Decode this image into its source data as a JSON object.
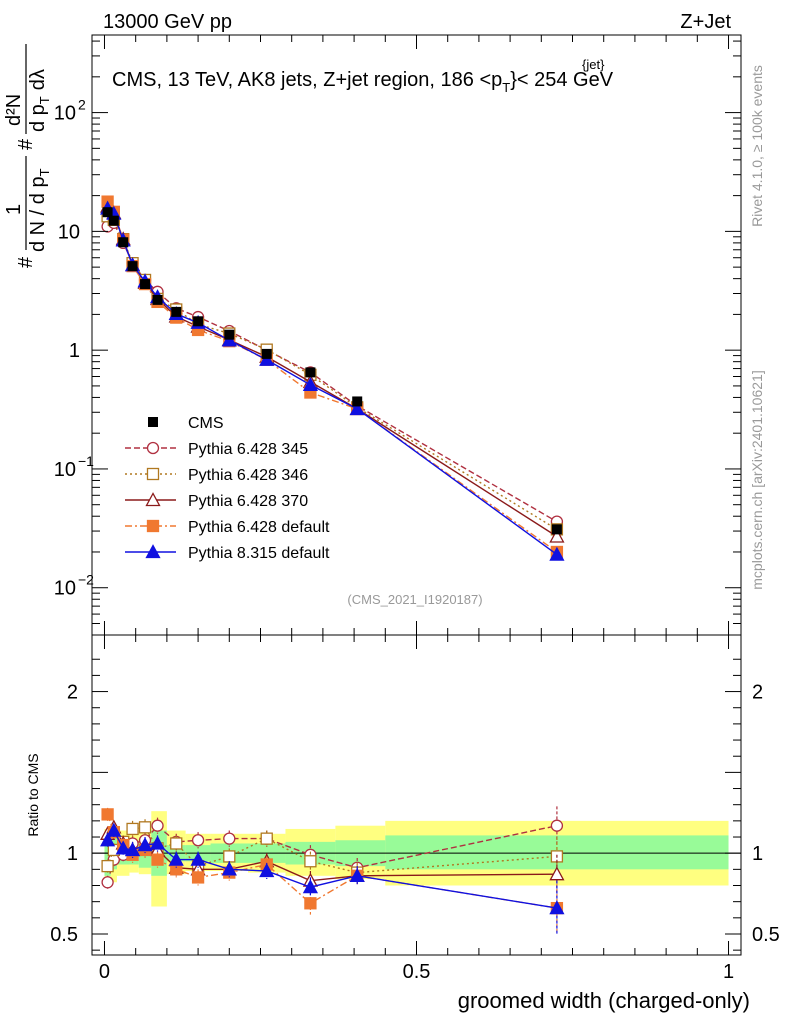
{
  "header": {
    "energy_label": "13000 GeV pp",
    "process_label": "Z+Jet",
    "analysis_title": "CMS, 13 TeV, AK8 jets, Z+jet region, 186 <p",
    "title_jet_sup": "{jet}",
    "title_t_sub": "T",
    "title_suffix": "}< 254 GeV",
    "analysis_id": "(CMS_2021_I1920187)"
  },
  "side_labels": {
    "rivet": "Rivet 4.1.0, ≥ 100k events",
    "mcplots": "mcplots.cern.ch [arXiv:2401.10621]"
  },
  "axes": {
    "xlabel": "groomed width (charged-only)",
    "ylabel_main": "# 1/(d N / d p_T) # d²N/(d p_T dλ)",
    "ylabel_ratio": "Ratio to CMS",
    "ylabel_parts": {
      "hash": "#",
      "one": "1",
      "dN": "d N / d p",
      "T": "T",
      "d2N": "d²N",
      "dp": "d p",
      "dl": "dλ"
    },
    "x_ticks": [
      {
        "value": 0,
        "label": "0"
      },
      {
        "value": 0.5,
        "label": "0.5"
      },
      {
        "value": 1,
        "label": "1"
      }
    ],
    "y_ticks_main": [
      {
        "value": 0.01,
        "base": "10",
        "exp": "−2"
      },
      {
        "value": 0.1,
        "base": "10",
        "exp": "−1"
      },
      {
        "value": 1,
        "base": "1",
        "exp": ""
      },
      {
        "value": 10,
        "base": "10",
        "exp": ""
      },
      {
        "value": 100,
        "base": "10",
        "exp": "2"
      }
    ],
    "y_ticks_ratio": [
      {
        "value": 0.5,
        "label": "0.5"
      },
      {
        "value": 1,
        "label": "1"
      },
      {
        "value": 2,
        "label": "2"
      }
    ]
  },
  "chart_data": {
    "type": "scatter",
    "title": "CMS, 13 TeV, AK8 jets, Z+jet region, 186 < pT(jet) < 254 GeV",
    "xlim": [
      -0.02,
      1.02
    ],
    "ylim_main": [
      0.004,
      450
    ],
    "yscale_main": "log",
    "ylim_ratio": [
      0.37,
      2.35
    ],
    "legend_position": "middle-left",
    "reference": {
      "name": "CMS",
      "x": [
        0.005,
        0.015,
        0.03,
        0.045,
        0.065,
        0.085,
        0.115,
        0.15,
        0.2,
        0.26,
        0.33,
        0.405,
        0.725
      ],
      "y": [
        14.5,
        12.3,
        8.1,
        5.1,
        3.6,
        2.65,
        2.1,
        1.75,
        1.35,
        0.93,
        0.65,
        0.37,
        0.031
      ],
      "color": "#000000",
      "marker": "square"
    },
    "ratio_band_green": [
      {
        "x0": 0.0,
        "x1": 0.01,
        "lo": 0.86,
        "hi": 1.12
      },
      {
        "x0": 0.01,
        "x1": 0.02,
        "lo": 0.9,
        "hi": 1.1
      },
      {
        "x0": 0.02,
        "x1": 0.04,
        "lo": 0.93,
        "hi": 1.07
      },
      {
        "x0": 0.04,
        "x1": 0.055,
        "lo": 0.93,
        "hi": 1.07
      },
      {
        "x0": 0.055,
        "x1": 0.075,
        "lo": 0.91,
        "hi": 1.09
      },
      {
        "x0": 0.075,
        "x1": 0.1,
        "lo": 0.86,
        "hi": 1.14
      },
      {
        "x0": 0.1,
        "x1": 0.13,
        "lo": 0.95,
        "hi": 1.05
      },
      {
        "x0": 0.13,
        "x1": 0.17,
        "lo": 0.95,
        "hi": 1.05
      },
      {
        "x0": 0.17,
        "x1": 0.23,
        "lo": 0.94,
        "hi": 1.06
      },
      {
        "x0": 0.23,
        "x1": 0.29,
        "lo": 0.94,
        "hi": 1.06
      },
      {
        "x0": 0.29,
        "x1": 0.37,
        "lo": 0.93,
        "hi": 1.07
      },
      {
        "x0": 0.37,
        "x1": 0.45,
        "lo": 0.92,
        "hi": 1.08
      },
      {
        "x0": 0.45,
        "x1": 1.0,
        "lo": 0.9,
        "hi": 1.11
      }
    ],
    "ratio_band_yellow": [
      {
        "x0": 0.0,
        "x1": 0.01,
        "lo": 0.83,
        "hi": 1.15
      },
      {
        "x0": 0.01,
        "x1": 0.02,
        "lo": 0.82,
        "hi": 1.17
      },
      {
        "x0": 0.02,
        "x1": 0.04,
        "lo": 0.86,
        "hi": 1.14
      },
      {
        "x0": 0.04,
        "x1": 0.055,
        "lo": 0.88,
        "hi": 1.13
      },
      {
        "x0": 0.055,
        "x1": 0.075,
        "lo": 0.87,
        "hi": 1.14
      },
      {
        "x0": 0.075,
        "x1": 0.1,
        "lo": 0.67,
        "hi": 1.26
      },
      {
        "x0": 0.1,
        "x1": 0.13,
        "lo": 0.87,
        "hi": 1.14
      },
      {
        "x0": 0.13,
        "x1": 0.17,
        "lo": 0.89,
        "hi": 1.12
      },
      {
        "x0": 0.17,
        "x1": 0.23,
        "lo": 0.89,
        "hi": 1.12
      },
      {
        "x0": 0.23,
        "x1": 0.29,
        "lo": 0.88,
        "hi": 1.12
      },
      {
        "x0": 0.29,
        "x1": 0.37,
        "lo": 0.86,
        "hi": 1.15
      },
      {
        "x0": 0.37,
        "x1": 0.45,
        "lo": 0.84,
        "hi": 1.17
      },
      {
        "x0": 0.45,
        "x1": 1.0,
        "lo": 0.8,
        "hi": 1.2
      }
    ],
    "series": [
      {
        "name": "Pythia 6.428 345",
        "color": "#b03040",
        "dash": "6,3",
        "marker": "circle-open",
        "x": [
          0.005,
          0.015,
          0.03,
          0.045,
          0.065,
          0.085,
          0.115,
          0.15,
          0.2,
          0.26,
          0.33,
          0.405,
          0.725
        ],
        "y": [
          11.0,
          11.8,
          8.0,
          5.4,
          3.9,
          3.1,
          2.25,
          1.9,
          1.45,
          1.0,
          0.65,
          0.34,
          0.036
        ],
        "ratio": [
          0.82,
          0.96,
          0.99,
          1.06,
          1.08,
          1.17,
          1.07,
          1.08,
          1.09,
          1.09,
          0.99,
          0.91,
          1.17
        ],
        "ratio_err": [
          0.04,
          0.04,
          0.04,
          0.05,
          0.05,
          0.05,
          0.05,
          0.05,
          0.05,
          0.05,
          0.06,
          0.06,
          0.12
        ]
      },
      {
        "name": "Pythia 6.428 346",
        "color": "#b07820",
        "dash": "2,3",
        "marker": "square-open",
        "x": [
          0.005,
          0.015,
          0.03,
          0.045,
          0.065,
          0.085,
          0.115,
          0.15,
          0.2,
          0.26,
          0.33,
          0.405,
          0.725
        ],
        "y": [
          13.4,
          12.5,
          8.6,
          5.4,
          3.9,
          2.7,
          2.2,
          1.65,
          1.38,
          1.01,
          0.62,
          0.33,
          0.031
        ],
        "ratio": [
          0.92,
          1.02,
          1.07,
          1.15,
          1.16,
          1.03,
          1.06,
          0.92,
          0.98,
          1.09,
          0.95,
          0.88,
          0.98
        ],
        "ratio_err": [
          0.04,
          0.04,
          0.04,
          0.05,
          0.05,
          0.05,
          0.05,
          0.05,
          0.05,
          0.05,
          0.06,
          0.06,
          0.12
        ]
      },
      {
        "name": "Pythia 6.428 370",
        "color": "#8b1a1a",
        "dash": "",
        "marker": "triangle-open",
        "x": [
          0.005,
          0.015,
          0.03,
          0.045,
          0.065,
          0.085,
          0.115,
          0.15,
          0.2,
          0.26,
          0.33,
          0.405,
          0.725
        ],
        "y": [
          16.2,
          14.3,
          8.6,
          5.2,
          3.7,
          2.7,
          1.92,
          1.58,
          1.22,
          0.88,
          0.54,
          0.32,
          0.027
        ],
        "ratio": [
          1.12,
          1.16,
          1.06,
          1.02,
          1.03,
          1.02,
          0.91,
          0.9,
          0.9,
          0.95,
          0.83,
          0.86,
          0.87
        ],
        "ratio_err": [
          0.04,
          0.04,
          0.04,
          0.05,
          0.05,
          0.05,
          0.05,
          0.05,
          0.05,
          0.05,
          0.06,
          0.06,
          0.12
        ]
      },
      {
        "name": "Pythia 6.428 default",
        "color": "#f07830",
        "dash": "7,3,2,3",
        "marker": "square-filled",
        "x": [
          0.005,
          0.015,
          0.03,
          0.045,
          0.065,
          0.085,
          0.115,
          0.15,
          0.2,
          0.26,
          0.33,
          0.405,
          0.725
        ],
        "y": [
          17.8,
          14.6,
          8.5,
          5.1,
          3.6,
          2.55,
          1.88,
          1.48,
          1.19,
          0.83,
          0.44,
          0.32,
          0.02
        ],
        "ratio": [
          1.24,
          1.13,
          1.05,
          0.99,
          1.02,
          0.96,
          0.9,
          0.85,
          0.88,
          0.93,
          0.69,
          0.86,
          0.66
        ],
        "ratio_err": [
          0.04,
          0.04,
          0.04,
          0.05,
          0.05,
          0.05,
          0.05,
          0.05,
          0.05,
          0.05,
          0.07,
          0.06,
          0.15
        ]
      },
      {
        "name": "Pythia 8.315 default",
        "color": "#1010e0",
        "dash": "",
        "marker": "triangle-filled",
        "x": [
          0.005,
          0.015,
          0.03,
          0.045,
          0.065,
          0.085,
          0.115,
          0.15,
          0.2,
          0.26,
          0.33,
          0.405,
          0.725
        ],
        "y": [
          15.6,
          14.1,
          8.4,
          5.2,
          3.8,
          2.8,
          2.02,
          1.7,
          1.21,
          0.83,
          0.51,
          0.32,
          0.019
        ],
        "ratio": [
          1.08,
          1.14,
          1.03,
          1.02,
          1.05,
          1.06,
          0.96,
          0.96,
          0.9,
          0.89,
          0.79,
          0.86,
          0.66
        ],
        "ratio_err": [
          0.04,
          0.04,
          0.04,
          0.05,
          0.05,
          0.05,
          0.05,
          0.05,
          0.05,
          0.05,
          0.06,
          0.06,
          0.17
        ]
      }
    ]
  }
}
